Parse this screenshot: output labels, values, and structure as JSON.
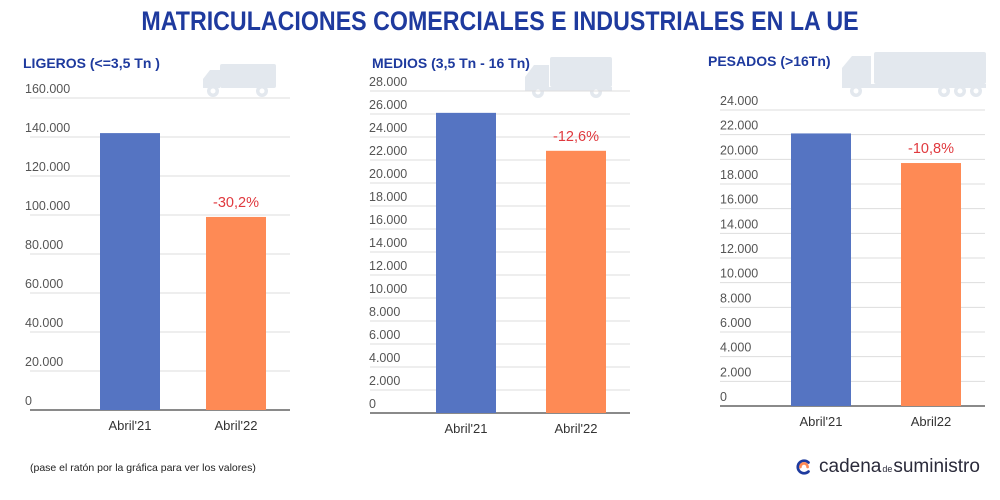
{
  "title": "MATRICULACIONES COMERCIALES E INDUSTRIALES EN LA UE",
  "footnote": "(pase el ratón por la gráfica para ver los valores)",
  "brand": {
    "part1": "cadena",
    "part2": "de",
    "part3": "suministro"
  },
  "colors": {
    "title": "#1e3a9e",
    "bar2021": "#5574c2",
    "bar2022": "#fe8a55",
    "change": "#e0393e",
    "axis": "#555555",
    "grid": "#dddddd"
  },
  "chart_data": [
    {
      "type": "bar",
      "title": "LIGEROS (<=3,5 Tn )",
      "icon": "van-icon",
      "categories": [
        "Abril'21",
        "Abril'22"
      ],
      "values": [
        142000,
        99000
      ],
      "change_label": "-30,2%",
      "ylim": [
        0,
        160000
      ],
      "yticks": [
        0,
        20000,
        40000,
        60000,
        80000,
        100000,
        120000,
        140000,
        160000
      ],
      "ytick_labels": [
        "0",
        "20.000",
        "40.000",
        "60.000",
        "80.000",
        "100.000",
        "120.000",
        "140.000",
        "160.000"
      ],
      "xlabel": "",
      "ylabel": ""
    },
    {
      "type": "bar",
      "title": "MEDIOS (3,5 Tn - 16 Tn)",
      "icon": "truck-icon",
      "categories": [
        "Abril'21",
        "Abril'22"
      ],
      "values": [
        26100,
        22800
      ],
      "change_label": "-12,6%",
      "ylim": [
        0,
        28000
      ],
      "yticks": [
        0,
        2000,
        4000,
        6000,
        8000,
        10000,
        12000,
        14000,
        16000,
        18000,
        20000,
        22000,
        24000,
        26000,
        28000
      ],
      "ytick_labels": [
        "0",
        "2.000",
        "4.000",
        "6.000",
        "8.000",
        "10.000",
        "12.000",
        "14.000",
        "16.000",
        "18.000",
        "20.000",
        "22.000",
        "24.000",
        "26.000",
        "28.000"
      ],
      "xlabel": "",
      "ylabel": ""
    },
    {
      "type": "bar",
      "title": "PESADOS (>16Tn)",
      "icon": "semi-truck-icon",
      "categories": [
        "Abril'21",
        "Abril22"
      ],
      "values": [
        22100,
        19700
      ],
      "change_label": "-10,8%",
      "ylim": [
        0,
        24000
      ],
      "yticks": [
        0,
        2000,
        4000,
        6000,
        8000,
        10000,
        12000,
        14000,
        16000,
        18000,
        20000,
        22000,
        24000
      ],
      "ytick_labels": [
        "0",
        "2.000",
        "4.000",
        "6.000",
        "8.000",
        "10.000",
        "12.000",
        "14.000",
        "16.000",
        "18.000",
        "20.000",
        "22.000",
        "24.000"
      ],
      "xlabel": "",
      "ylabel": ""
    }
  ]
}
